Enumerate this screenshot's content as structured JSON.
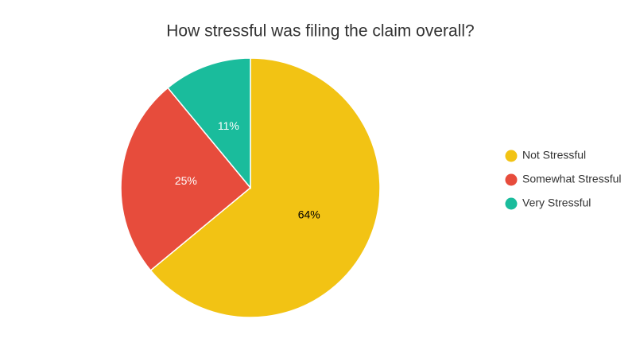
{
  "chart_data": {
    "type": "pie",
    "title": "How stressful was filing the claim overall?",
    "categories": [
      "Not Stressful",
      "Somewhat Stressful",
      "Very Stressful"
    ],
    "values": [
      64,
      25,
      11
    ],
    "value_labels": [
      "64%",
      "25%",
      "11%"
    ],
    "colors": [
      "#f2c314",
      "#e74c3c",
      "#1abc9c"
    ],
    "legend": "right"
  }
}
